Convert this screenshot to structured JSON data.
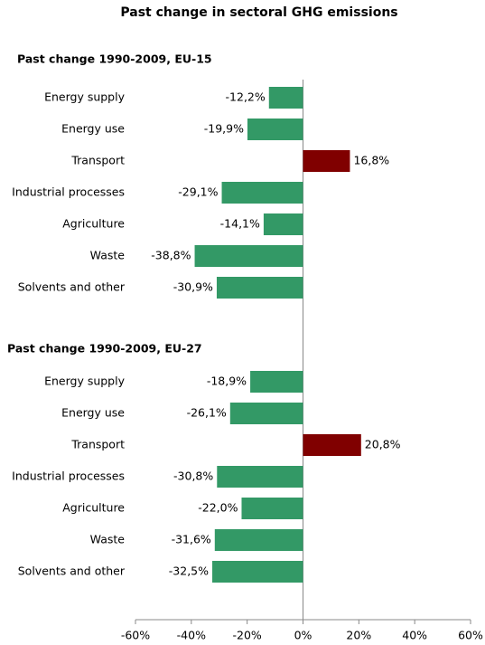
{
  "title": "Past change in sectoral GHG emissions",
  "chart_data": [
    {
      "type": "bar",
      "orientation": "horizontal",
      "title": "Past change 1990-2009, EU-15",
      "categories": [
        "Energy supply",
        "Energy use",
        "Transport",
        "Industrial processes",
        "Agriculture",
        "Waste",
        "Solvents and other"
      ],
      "values": [
        -12.2,
        -19.9,
        16.8,
        -29.1,
        -14.1,
        -38.8,
        -30.9
      ],
      "value_labels": [
        "-12,2%",
        "-19,9%",
        "16,8%",
        "-29,1%",
        "-14,1%",
        "-38,8%",
        "-30,9%"
      ],
      "colors": [
        "#339966",
        "#339966",
        "#800000",
        "#339966",
        "#339966",
        "#339966",
        "#339966"
      ],
      "xlim": [
        -60,
        60
      ]
    },
    {
      "type": "bar",
      "orientation": "horizontal",
      "title": "Past change 1990-2009, EU-27",
      "categories": [
        "Energy supply",
        "Energy use",
        "Transport",
        "Industrial processes",
        "Agriculture",
        "Waste",
        "Solvents and other"
      ],
      "values": [
        -18.9,
        -26.1,
        20.8,
        -30.8,
        -22.0,
        -31.6,
        -32.5
      ],
      "value_labels": [
        "-18,9%",
        "-26,1%",
        "20,8%",
        "-30,8%",
        "-22,0%",
        "-31,6%",
        "-32,5%"
      ],
      "colors": [
        "#339966",
        "#339966",
        "#800000",
        "#339966",
        "#339966",
        "#339966",
        "#339966"
      ],
      "xlim": [
        -60,
        60
      ],
      "xticks": [
        {
          "value": -60,
          "label": "-60%"
        },
        {
          "value": -40,
          "label": "-40%"
        },
        {
          "value": -20,
          "label": "-20%"
        },
        {
          "value": 0,
          "label": "0%"
        },
        {
          "value": 20,
          "label": "20%"
        },
        {
          "value": 40,
          "label": "40%"
        },
        {
          "value": 60,
          "label": "60%"
        }
      ]
    }
  ]
}
